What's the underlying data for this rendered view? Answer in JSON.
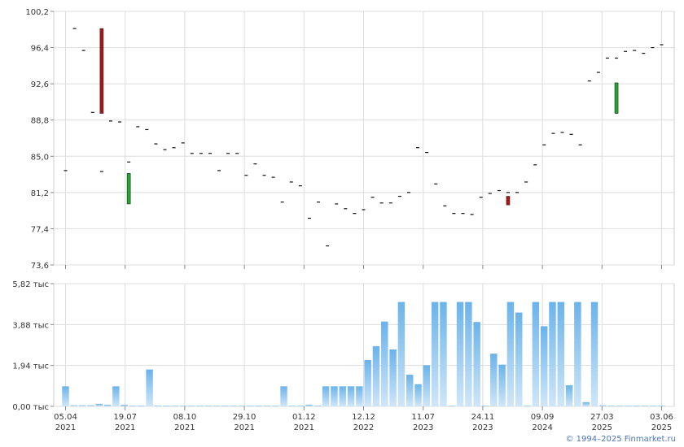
{
  "copyright": "© 1994–2025 Finmarket.ru",
  "chart_data": [
    {
      "type": "candlestick",
      "ylim": [
        73.6,
        100.2
      ],
      "yticks": [
        "100,2",
        "96,4",
        "92,6",
        "88,8",
        "85,0",
        "81,2",
        "77,4",
        "73,6"
      ],
      "grid": true,
      "dashes": [
        83.5,
        98.4,
        96.1,
        89.6,
        83.4,
        88.7,
        88.6,
        84.4,
        88.1,
        87.8,
        86.3,
        85.7,
        85.9,
        86.4,
        85.3,
        85.3,
        85.3,
        83.5,
        85.3,
        85.3,
        83.0,
        84.2,
        83.0,
        82.8,
        80.2,
        82.3,
        81.9,
        78.5,
        80.2,
        75.6,
        80.0,
        79.5,
        79.0,
        79.4,
        80.7,
        80.1,
        80.1,
        80.8,
        81.2,
        85.9,
        85.4,
        82.1,
        79.8,
        79.0,
        79.0,
        78.9,
        80.7,
        81.1,
        81.4,
        81.2,
        81.2,
        82.3,
        84.1,
        86.2,
        87.4,
        87.5,
        87.3,
        86.2,
        92.9,
        93.8,
        95.3,
        95.3,
        96.0,
        96.1,
        95.8,
        96.4,
        96.7
      ],
      "candles": [
        {
          "open": 98.4,
          "close": 89.5,
          "color": "red"
        },
        {
          "open": 80.0,
          "close": 83.2,
          "color": "green"
        },
        {
          "open": 80.8,
          "close": 79.9,
          "color": "red"
        },
        {
          "open": 89.5,
          "close": 92.7,
          "color": "green"
        }
      ]
    },
    {
      "type": "bar",
      "ylim": [
        0,
        5.82
      ],
      "yticks": [
        "5,82 тыс",
        "3,88 тыс",
        "1,94 тыс",
        "0,00 тыс"
      ],
      "values": [
        0.95,
        0.05,
        0.05,
        0.05,
        0.12,
        0.08,
        0.95,
        0.08,
        0.03,
        0.03,
        1.75,
        0.03,
        0.03,
        0.03,
        0.03,
        0.03,
        0.03,
        0.03,
        0.03,
        0.03,
        0.03,
        0.03,
        0.03,
        0.03,
        0.03,
        0.03,
        0.95,
        0.03,
        0.03,
        0.08,
        0.03,
        0.95,
        0.95,
        0.95,
        0.95,
        0.95,
        2.2,
        2.85,
        4.02,
        2.7,
        4.95,
        1.5,
        1.05,
        1.95,
        4.95,
        4.95,
        0.03,
        4.95,
        4.95,
        4.0,
        0.03,
        2.5,
        1.98,
        4.95,
        4.45,
        0.03,
        4.95,
        3.8,
        4.95,
        4.95,
        1.0,
        4.95,
        0.2,
        4.95,
        0.05,
        0.03,
        0.03,
        0.03,
        0.03,
        0.03,
        0.03,
        0.03
      ],
      "x_labels": [
        {
          "date": "05.04",
          "year": "2021"
        },
        {
          "date": "19.07",
          "year": "2021"
        },
        {
          "date": "08.10",
          "year": "2021"
        },
        {
          "date": "29.10",
          "year": "2021"
        },
        {
          "date": "01.12",
          "year": "2021"
        },
        {
          "date": "12.12",
          "year": "2022"
        },
        {
          "date": "11.07",
          "year": "2023"
        },
        {
          "date": "24.11",
          "year": "2023"
        },
        {
          "date": "09.09",
          "year": "2024"
        },
        {
          "date": "27.03",
          "year": "2025"
        },
        {
          "date": "03.06",
          "year": "2025"
        }
      ]
    }
  ]
}
